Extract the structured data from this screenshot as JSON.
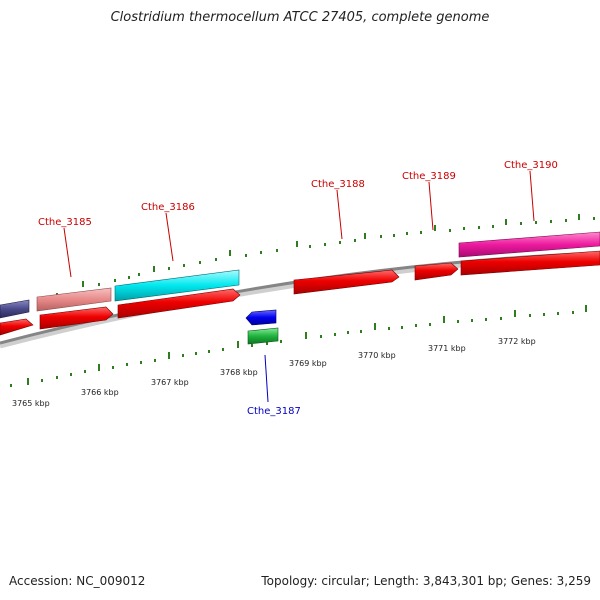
{
  "title": "Clostridium thermocellum ATCC 27405, complete genome",
  "accession": "Accession: NC_009012",
  "topology": "Topology: circular; Length: 3,843,301 bp; Genes: 3,259",
  "kbp_labels": [
    "3765 kbp",
    "3766 kbp",
    "3767 kbp",
    "3768 kbp",
    "3769 kbp",
    "3770 kbp",
    "3771 kbp",
    "3772 kbp"
  ],
  "gene_labels": {
    "cthe_3185": "Cthe_3185",
    "cthe_3186": "Cthe_3186",
    "cthe_3187": "Cthe_3187",
    "cthe_3188": "Cthe_3188",
    "cthe_3189": "Cthe_3189",
    "cthe_3190": "Cthe_3190"
  },
  "colors": {
    "cds": "#ee0000",
    "cthe_3185_feature": "#e88a8a",
    "cthe_3186_feature": "#00e8ee",
    "cthe_3187_feature": "#1eb43c",
    "cthe_3187_cds": "#0000ee",
    "cthe_3190_feature": "#ee1aa0",
    "left_edge_feature": "#4a4a8a",
    "backbone": "#888888",
    "ticks": "#2e7d1e",
    "label_fwd": "#c80000",
    "label_rev": "#0000c0"
  }
}
